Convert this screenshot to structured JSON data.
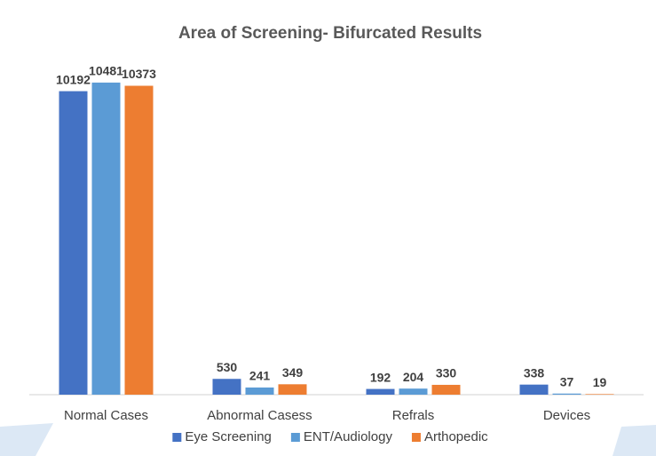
{
  "chart_data": {
    "type": "bar",
    "title": "Area of Screening- Bifurcated Results",
    "categories": [
      "Normal Cases",
      "Abnormal Casess",
      "Refrals",
      "Devices"
    ],
    "series": [
      {
        "name": "Eye Screening",
        "color": "#4472c4",
        "values": [
          10192,
          530,
          192,
          338
        ]
      },
      {
        "name": "ENT/Audiology",
        "color": "#5b9bd5",
        "values": [
          10481,
          241,
          204,
          37
        ]
      },
      {
        "name": "Arthopedic",
        "color": "#ed7d31",
        "values": [
          10373,
          349,
          330,
          19
        ]
      }
    ],
    "ylim": [
      0,
      12000
    ],
    "legend": "bottom"
  }
}
